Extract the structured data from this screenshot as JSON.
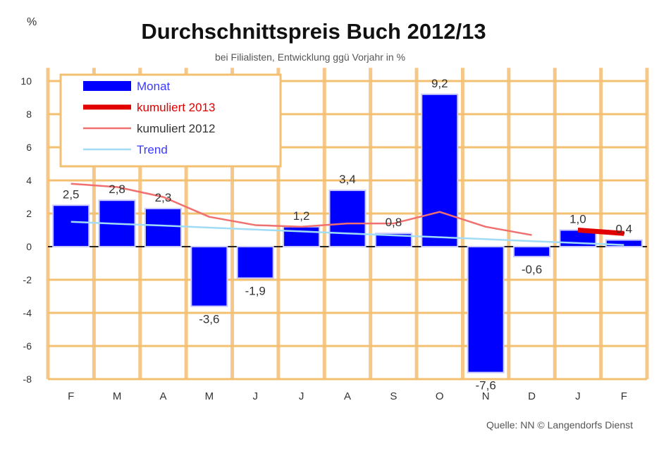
{
  "chart_data": {
    "type": "bar",
    "title": "Durchschnittspreis Buch 2012/13",
    "subtitle": "bei Filialisten, Entwicklung ggü Vorjahr in %",
    "ylabel": "%",
    "source": "Quelle: NN © Langendorfs Dienst",
    "categories": [
      "F",
      "M",
      "A",
      "M",
      "J",
      "J",
      "A",
      "S",
      "O",
      "N",
      "D",
      "J",
      "F"
    ],
    "ylim": [
      -8,
      10.8
    ],
    "yticks": [
      10,
      8,
      6,
      4,
      2,
      0,
      -2,
      -4,
      -6,
      -8
    ],
    "grid": true,
    "legend_position": "top-left",
    "series": [
      {
        "name": "Monat",
        "type": "bar",
        "color": "#0000ff",
        "values": [
          2.5,
          2.8,
          2.3,
          -3.6,
          -1.9,
          1.2,
          3.4,
          0.8,
          9.2,
          -7.6,
          -0.6,
          1.0,
          0.4
        ],
        "labels": [
          "2,5",
          "2,8",
          "2,3",
          "-3,6",
          "-1,9",
          "1,2",
          "3,4",
          "0,8",
          "9,2",
          "-7,6",
          "-0,6",
          "1,0",
          "0,4"
        ]
      },
      {
        "name": "kumuliert 2013",
        "type": "line",
        "color": "#e00000",
        "values": [
          null,
          null,
          null,
          null,
          null,
          null,
          null,
          null,
          null,
          null,
          null,
          1.0,
          0.8
        ]
      },
      {
        "name": "kumuliert 2012",
        "type": "line",
        "color": "#f07070",
        "values": [
          3.8,
          3.6,
          3.0,
          1.8,
          1.3,
          1.2,
          1.4,
          1.4,
          2.1,
          1.2,
          0.7,
          null,
          null
        ]
      },
      {
        "name": "Trend",
        "type": "line",
        "color": "#a0dcf5",
        "values": [
          1.5,
          1.38,
          1.27,
          1.15,
          1.03,
          0.92,
          0.8,
          0.68,
          0.57,
          0.45,
          0.33,
          0.22,
          0.1
        ]
      }
    ]
  }
}
